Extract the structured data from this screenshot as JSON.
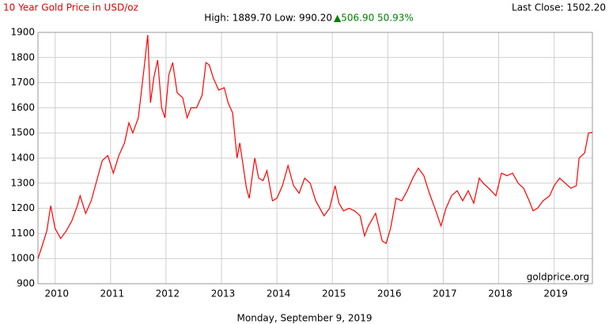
{
  "chart_data": {
    "type": "line",
    "title": "10 Year Gold Price in USD/oz",
    "stats": "High: 1889.70 Low: 990.20",
    "change": "▲506.90 50.93%",
    "last_close": "Last Close: 1502.20",
    "source": "goldprice.org",
    "date": "Monday, September 9, 2019",
    "color": "#ff0000",
    "x": [
      2009.69,
      2009.75,
      2009.85,
      2009.92,
      2010.0,
      2010.1,
      2010.2,
      2010.3,
      2010.4,
      2010.45,
      2010.55,
      2010.65,
      2010.75,
      2010.85,
      2010.95,
      2011.05,
      2011.15,
      2011.25,
      2011.33,
      2011.4,
      2011.5,
      2011.6,
      2011.67,
      2011.72,
      2011.78,
      2011.85,
      2011.92,
      2011.98,
      2012.05,
      2012.12,
      2012.2,
      2012.3,
      2012.38,
      2012.45,
      2012.55,
      2012.65,
      2012.72,
      2012.78,
      2012.85,
      2012.95,
      2013.05,
      2013.12,
      2013.2,
      2013.28,
      2013.33,
      2013.45,
      2013.5,
      2013.6,
      2013.67,
      2013.75,
      2013.82,
      2013.92,
      2014.0,
      2014.1,
      2014.2,
      2014.3,
      2014.4,
      2014.5,
      2014.6,
      2014.7,
      2014.85,
      2014.95,
      2015.05,
      2015.12,
      2015.2,
      2015.3,
      2015.4,
      2015.5,
      2015.58,
      2015.65,
      2015.78,
      2015.9,
      2015.97,
      2016.05,
      2016.15,
      2016.25,
      2016.35,
      2016.45,
      2016.55,
      2016.65,
      2016.75,
      2016.85,
      2016.96,
      2017.05,
      2017.15,
      2017.25,
      2017.35,
      2017.45,
      2017.55,
      2017.65,
      2017.72,
      2017.82,
      2017.95,
      2018.05,
      2018.15,
      2018.25,
      2018.35,
      2018.45,
      2018.55,
      2018.62,
      2018.7,
      2018.8,
      2018.92,
      2019.0,
      2019.1,
      2019.2,
      2019.3,
      2019.4,
      2019.45,
      2019.55,
      2019.62,
      2019.69
    ],
    "values": [
      1000,
      1040,
      1110,
      1210,
      1120,
      1080,
      1110,
      1150,
      1210,
      1250,
      1180,
      1230,
      1310,
      1390,
      1410,
      1340,
      1410,
      1460,
      1540,
      1500,
      1560,
      1750,
      1890,
      1620,
      1720,
      1790,
      1600,
      1560,
      1730,
      1780,
      1660,
      1640,
      1560,
      1600,
      1600,
      1650,
      1780,
      1770,
      1720,
      1670,
      1680,
      1620,
      1580,
      1400,
      1460,
      1280,
      1240,
      1400,
      1320,
      1310,
      1350,
      1230,
      1240,
      1290,
      1370,
      1290,
      1260,
      1320,
      1300,
      1230,
      1170,
      1200,
      1290,
      1220,
      1190,
      1200,
      1190,
      1170,
      1090,
      1130,
      1180,
      1070,
      1060,
      1120,
      1240,
      1230,
      1270,
      1320,
      1360,
      1330,
      1260,
      1200,
      1130,
      1200,
      1250,
      1270,
      1230,
      1270,
      1220,
      1320,
      1300,
      1280,
      1250,
      1340,
      1330,
      1340,
      1300,
      1280,
      1230,
      1190,
      1200,
      1230,
      1250,
      1290,
      1320,
      1300,
      1280,
      1290,
      1400,
      1420,
      1500,
      1502
    ],
    "xlim": [
      2009.69,
      2019.69
    ],
    "xticks": [
      2010,
      2011,
      2012,
      2013,
      2014,
      2015,
      2016,
      2017,
      2018,
      2019
    ],
    "ylim": [
      900,
      1900
    ],
    "yticks": [
      900,
      1000,
      1100,
      1200,
      1300,
      1400,
      1500,
      1600,
      1700,
      1800,
      1900
    ],
    "grid": true
  }
}
